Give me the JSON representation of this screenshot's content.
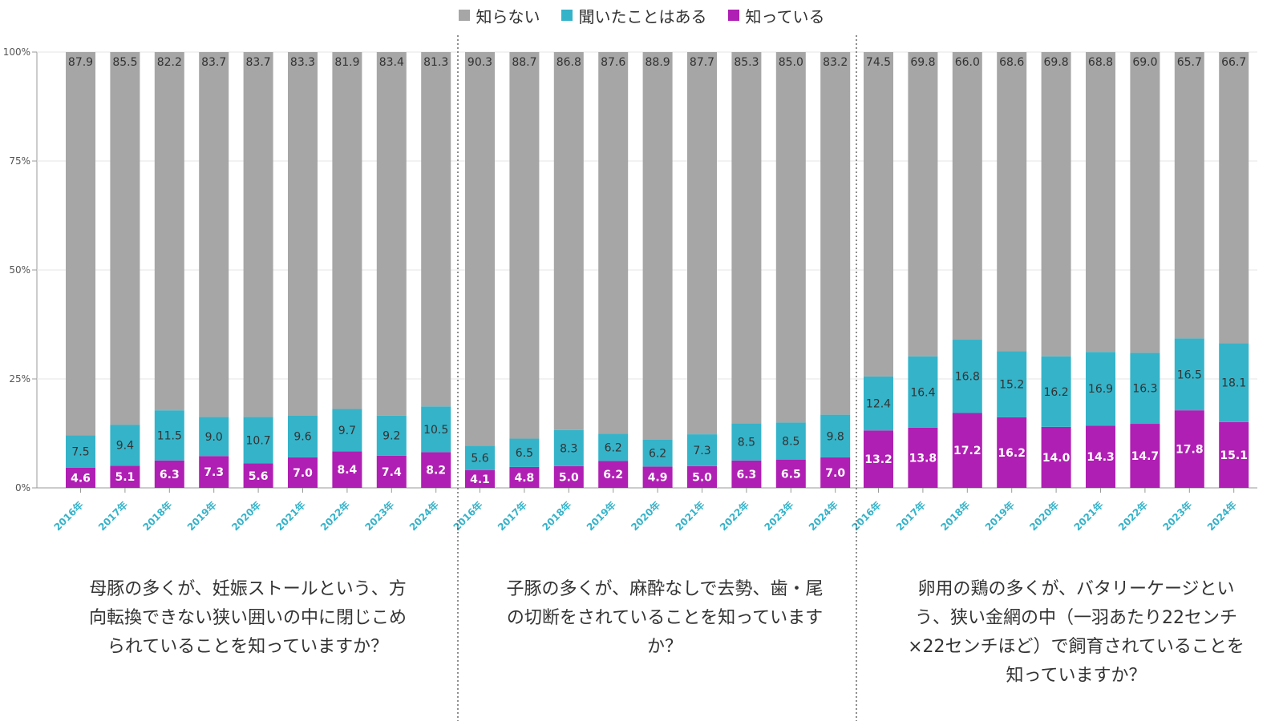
{
  "legend": [
    {
      "label": "知らない",
      "color": "#a6a6a6"
    },
    {
      "label": "聞いたことはある",
      "color": "#35b3c9"
    },
    {
      "label": "知っている",
      "color": "#b01fb3"
    }
  ],
  "captions": {
    "group1": "母豚の多くが、妊娠ストールという、方向転換できない狭い囲いの中に閉じこめられていることを知っていますか？",
    "group2": "子豚の多くが、麻酔なしで去勢、歯・尾の切断をされていることを知っていますか？",
    "group3": "卵用の鶏の多くが、バタリーケージという、狭い金網の中（一羽あたり22センチ×22センチほど）で飼育されていることを知っていますか？"
  },
  "chart_data": {
    "type": "bar",
    "stacked": true,
    "ylim": [
      0,
      100
    ],
    "yticks": [
      "0%",
      "25%",
      "50%",
      "75%",
      "100%"
    ],
    "ytick_values": [
      0,
      25,
      50,
      75,
      100
    ],
    "series_names": [
      "知らない",
      "聞いたことはある",
      "知っている"
    ],
    "colors": {
      "unknown": "#a6a6a6",
      "heard": "#35b3c9",
      "known": "#b01fb3"
    },
    "groups": [
      {
        "caption_key": "group1",
        "categories": [
          "2016年",
          "2017年",
          "2018年",
          "2019年",
          "2020年",
          "2021年",
          "2022年",
          "2023年",
          "2024年"
        ],
        "known": [
          4.6,
          5.1,
          6.3,
          7.3,
          5.6,
          7.0,
          8.4,
          7.4,
          8.2
        ],
        "heard": [
          7.5,
          9.4,
          11.5,
          9.0,
          10.7,
          9.6,
          9.7,
          9.2,
          10.5
        ],
        "unknown": [
          87.9,
          85.5,
          82.2,
          83.7,
          83.7,
          83.3,
          81.9,
          83.4,
          81.3
        ]
      },
      {
        "caption_key": "group2",
        "categories": [
          "2016年",
          "2017年",
          "2018年",
          "2019年",
          "2020年",
          "2021年",
          "2022年",
          "2023年",
          "2024年"
        ],
        "known": [
          4.1,
          4.8,
          5.0,
          6.2,
          4.9,
          5.0,
          6.3,
          6.5,
          7.0
        ],
        "heard": [
          5.6,
          6.5,
          8.3,
          6.2,
          6.2,
          7.3,
          8.5,
          8.5,
          9.8
        ],
        "unknown": [
          90.3,
          88.7,
          86.8,
          87.6,
          88.9,
          87.7,
          85.3,
          85.0,
          83.2
        ]
      },
      {
        "caption_key": "group3",
        "categories": [
          "2016年",
          "2017年",
          "2018年",
          "2019年",
          "2020年",
          "2021年",
          "2022年",
          "2023年",
          "2024年"
        ],
        "known": [
          13.2,
          13.8,
          17.2,
          16.2,
          14.0,
          14.3,
          14.7,
          17.8,
          15.1
        ],
        "heard": [
          12.4,
          16.4,
          16.8,
          15.2,
          16.2,
          16.9,
          16.3,
          16.5,
          18.1
        ],
        "unknown": [
          74.5,
          69.8,
          66.0,
          68.6,
          69.8,
          68.8,
          69.0,
          65.7,
          66.7
        ]
      }
    ]
  }
}
